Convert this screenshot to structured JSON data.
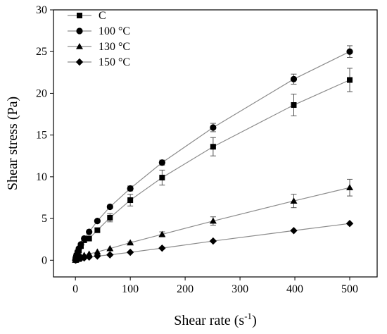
{
  "chart_data": {
    "type": "line",
    "title": "",
    "xlabel": "Shear rate (s",
    "xlabel_sup": "-1",
    "xlabel_close": ")",
    "ylabel": "Shear stress (Pa)",
    "xlim": [
      -40,
      550
    ],
    "ylim": [
      -2,
      30
    ],
    "xticks": [
      0,
      100,
      200,
      300,
      400,
      500
    ],
    "yticks": [
      0,
      5,
      10,
      15,
      20,
      25,
      30
    ],
    "grid": false,
    "legend_position": "top-left",
    "line_color": "#8c8c8c",
    "marker_color": "#000000",
    "series": [
      {
        "name": "C",
        "marker": "square",
        "x": [
          0.1,
          0.5,
          1,
          2,
          4,
          6.3,
          10,
          16,
          25,
          40,
          63,
          100,
          158,
          251,
          398,
          500
        ],
        "y": [
          0.05,
          0.15,
          0.3,
          0.55,
          0.9,
          1.2,
          1.7,
          2.4,
          2.6,
          3.6,
          5.1,
          7.2,
          9.9,
          13.6,
          18.6,
          21.6
        ],
        "err": [
          0,
          0,
          0,
          0,
          0,
          0,
          0,
          0,
          0,
          0.2,
          0.5,
          0.7,
          0.9,
          1.1,
          1.3,
          1.4
        ]
      },
      {
        "name": "100 °C",
        "marker": "circle",
        "x": [
          0.1,
          0.5,
          1,
          2,
          4,
          6.3,
          10,
          16,
          25,
          40,
          63,
          100,
          158,
          251,
          398,
          500
        ],
        "y": [
          0.05,
          0.2,
          0.35,
          0.6,
          1.0,
          1.4,
          1.9,
          2.6,
          3.4,
          4.7,
          6.4,
          8.6,
          11.7,
          15.9,
          21.7,
          25.0
        ],
        "err": [
          0,
          0,
          0,
          0,
          0,
          0,
          0,
          0,
          0,
          0,
          0.2,
          0.3,
          0.3,
          0.5,
          0.6,
          0.7
        ]
      },
      {
        "name": "130 °C",
        "marker": "triangle",
        "x": [
          0.1,
          0.5,
          1,
          2,
          4,
          6.3,
          10,
          16,
          25,
          40,
          63,
          100,
          158,
          251,
          398,
          500
        ],
        "y": [
          0.02,
          0.05,
          0.1,
          0.15,
          0.25,
          0.35,
          0.45,
          0.6,
          0.75,
          1.0,
          1.4,
          2.1,
          3.1,
          4.7,
          7.1,
          8.7
        ],
        "err": [
          0,
          0,
          0,
          0,
          0,
          0,
          0,
          0,
          0,
          0,
          0,
          0.1,
          0.3,
          0.5,
          0.8,
          1.0
        ]
      },
      {
        "name": "150 °C",
        "marker": "diamond",
        "x": [
          0.1,
          0.5,
          1,
          2,
          4,
          6.3,
          10,
          16,
          25,
          40,
          63,
          100,
          158,
          251,
          398,
          500
        ],
        "y": [
          0.01,
          0.03,
          0.05,
          0.08,
          0.12,
          0.16,
          0.2,
          0.28,
          0.38,
          0.5,
          0.65,
          0.95,
          1.45,
          2.3,
          3.55,
          4.4
        ],
        "err": [
          0,
          0,
          0,
          0,
          0,
          0,
          0,
          0,
          0,
          0,
          0,
          0,
          0,
          0,
          0,
          0
        ]
      }
    ]
  }
}
